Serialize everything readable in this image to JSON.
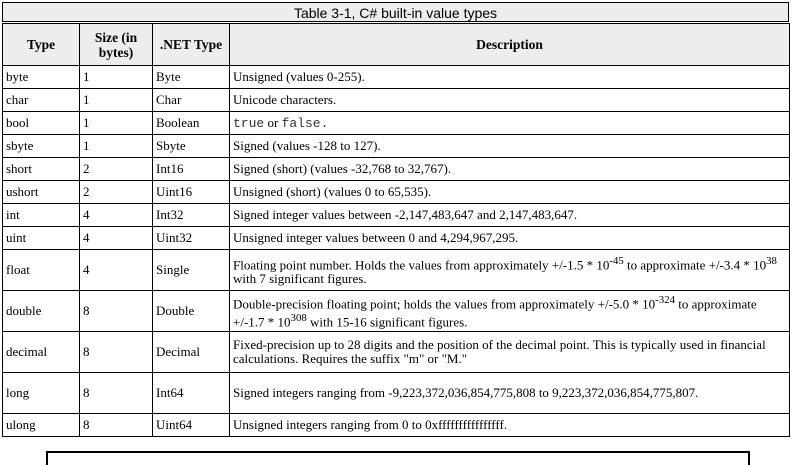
{
  "caption": "Table 3-1, C# built-in value types",
  "headers": {
    "type": "Type",
    "size": "Size (in bytes)",
    "net_type": ".NET Type",
    "description": "Description"
  },
  "rows": [
    {
      "type": "byte",
      "size": "1",
      "net": "Byte",
      "desc": "Unsigned (values 0-255)."
    },
    {
      "type": "char",
      "size": "1",
      "net": "Char",
      "desc": "Unicode characters."
    },
    {
      "type": "bool",
      "size": "1",
      "net": "Boolean",
      "desc_a": "true",
      "desc_b": " or ",
      "desc_c": "false."
    },
    {
      "type": "sbyte",
      "size": "1",
      "net": "Sbyte",
      "desc": "Signed (values -128 to 127)."
    },
    {
      "type": "short",
      "size": "2",
      "net": "Int16",
      "desc": "Signed (short) (values -32,768 to 32,767)."
    },
    {
      "type": "ushort",
      "size": "2",
      "net": "Uint16",
      "desc": "Unsigned (short) (values 0 to 65,535)."
    },
    {
      "type": "int",
      "size": "4",
      "net": "Int32",
      "desc": "Signed integer values between -2,147,483,647 and 2,147,483,647."
    },
    {
      "type": "uint",
      "size": "4",
      "net": "Uint32",
      "desc": "Unsigned integer values between 0 and 4,294,967,295."
    },
    {
      "type": "float",
      "size": "4",
      "net": "Single",
      "desc_1": "Floating point number. Holds the values from approximately +/-1.5 * 10",
      "sup_1": "-45",
      "desc_2": " to approximate +/-3.4 * 10",
      "sup_2": "38",
      "desc_3": " with 7 significant figures."
    },
    {
      "type": "double",
      "size": "8",
      "net": "Double",
      "desc_1": "Double-precision floating point; holds the values from approximately +/-5.0 * 10",
      "sup_1": "-324",
      "desc_2": " to approximate +/-1.7 * 10",
      "sup_2": "308",
      "desc_3": " with 15-16 significant figures."
    },
    {
      "type": "decimal",
      "size": "8",
      "net": "Decimal",
      "desc": "Fixed-precision up to 28 digits and the position of the decimal point. This is typically used in financial calculations. Requires the suffix \"m\" or \"M.\""
    },
    {
      "type": "long",
      "size": "8",
      "net": "Int64",
      "desc": "Signed integers ranging from -9,223,372,036,854,775,808 to 9,223,372,036,854,775,807."
    },
    {
      "type": "ulong",
      "size": "8",
      "net": "Uint64",
      "desc": "Unsigned integers ranging from 0 to 0xffffffffffffffff."
    }
  ]
}
